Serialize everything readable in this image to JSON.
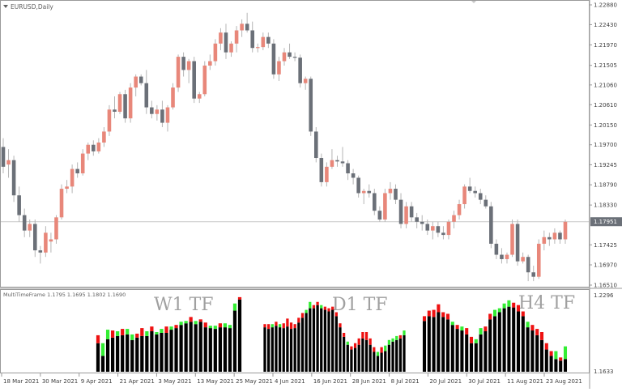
{
  "main_chart": {
    "symbol_label": "EURUSD,Daily",
    "price_ticks": [
      "1.22880",
      "1.22430",
      "1.21970",
      "1.21505",
      "1.21060",
      "1.20610",
      "1.20150",
      "1.19700",
      "1.19245",
      "1.18790",
      "1.18330",
      "1.17951",
      "1.17425",
      "1.16970",
      "1.16510"
    ],
    "current_price": "1.17951",
    "colors": {
      "bull": "#e8877a",
      "bear": "#6b7078",
      "badge": "#6b7078",
      "grid": "#c8c8c8"
    },
    "candles": [
      {
        "o": 1.1965,
        "h": 1.1985,
        "l": 1.1905,
        "c": 1.192
      },
      {
        "o": 1.1925,
        "h": 1.196,
        "l": 1.1895,
        "c": 1.1935
      },
      {
        "o": 1.1935,
        "h": 1.1945,
        "l": 1.184,
        "c": 1.1855
      },
      {
        "o": 1.1855,
        "h": 1.1875,
        "l": 1.1795,
        "c": 1.181
      },
      {
        "o": 1.181,
        "h": 1.1825,
        "l": 1.176,
        "c": 1.1775
      },
      {
        "o": 1.1775,
        "h": 1.18,
        "l": 1.176,
        "c": 1.179
      },
      {
        "o": 1.179,
        "h": 1.18,
        "l": 1.1715,
        "c": 1.173
      },
      {
        "o": 1.173,
        "h": 1.174,
        "l": 1.17,
        "c": 1.1725
      },
      {
        "o": 1.1725,
        "h": 1.1785,
        "l": 1.1715,
        "c": 1.177
      },
      {
        "o": 1.175,
        "h": 1.177,
        "l": 1.1725,
        "c": 1.1755
      },
      {
        "o": 1.1755,
        "h": 1.181,
        "l": 1.1745,
        "c": 1.1805
      },
      {
        "o": 1.1805,
        "h": 1.188,
        "l": 1.18,
        "c": 1.187
      },
      {
        "o": 1.187,
        "h": 1.189,
        "l": 1.186,
        "c": 1.1875
      },
      {
        "o": 1.1875,
        "h": 1.1925,
        "l": 1.186,
        "c": 1.1915
      },
      {
        "o": 1.1915,
        "h": 1.193,
        "l": 1.1895,
        "c": 1.1905
      },
      {
        "o": 1.1905,
        "h": 1.196,
        "l": 1.19,
        "c": 1.195
      },
      {
        "o": 1.195,
        "h": 1.1975,
        "l": 1.1935,
        "c": 1.197
      },
      {
        "o": 1.197,
        "h": 1.198,
        "l": 1.1945,
        "c": 1.1955
      },
      {
        "o": 1.1955,
        "h": 1.1985,
        "l": 1.195,
        "c": 1.1975
      },
      {
        "o": 1.1975,
        "h": 1.201,
        "l": 1.1965,
        "c": 1.2
      },
      {
        "o": 1.2,
        "h": 1.206,
        "l": 1.199,
        "c": 1.205
      },
      {
        "o": 1.205,
        "h": 1.208,
        "l": 1.203,
        "c": 1.2045
      },
      {
        "o": 1.2045,
        "h": 1.209,
        "l": 1.204,
        "c": 1.2085
      },
      {
        "o": 1.2085,
        "h": 1.2095,
        "l": 1.202,
        "c": 1.203
      },
      {
        "o": 1.203,
        "h": 1.211,
        "l": 1.202,
        "c": 1.21
      },
      {
        "o": 1.21,
        "h": 1.213,
        "l": 1.208,
        "c": 1.2125
      },
      {
        "o": 1.2125,
        "h": 1.213,
        "l": 1.2105,
        "c": 1.211
      },
      {
        "o": 1.211,
        "h": 1.214,
        "l": 1.204,
        "c": 1.2055
      },
      {
        "o": 1.2055,
        "h": 1.207,
        "l": 1.203,
        "c": 1.204
      },
      {
        "o": 1.204,
        "h": 1.206,
        "l": 1.2025,
        "c": 1.205
      },
      {
        "o": 1.205,
        "h": 1.207,
        "l": 1.201,
        "c": 1.202
      },
      {
        "o": 1.202,
        "h": 1.206,
        "l": 1.2,
        "c": 1.2055
      },
      {
        "o": 1.2055,
        "h": 1.211,
        "l": 1.205,
        "c": 1.21
      },
      {
        "o": 1.21,
        "h": 1.2175,
        "l": 1.209,
        "c": 1.217
      },
      {
        "o": 1.217,
        "h": 1.218,
        "l": 1.2125,
        "c": 1.214
      },
      {
        "o": 1.214,
        "h": 1.2165,
        "l": 1.211,
        "c": 1.216
      },
      {
        "o": 1.216,
        "h": 1.217,
        "l": 1.2065,
        "c": 1.2075
      },
      {
        "o": 1.2075,
        "h": 1.209,
        "l": 1.2065,
        "c": 1.2085
      },
      {
        "o": 1.2085,
        "h": 1.216,
        "l": 1.208,
        "c": 1.215
      },
      {
        "o": 1.215,
        "h": 1.2175,
        "l": 1.214,
        "c": 1.216
      },
      {
        "o": 1.216,
        "h": 1.221,
        "l": 1.215,
        "c": 1.22
      },
      {
        "o": 1.22,
        "h": 1.2235,
        "l": 1.2185,
        "c": 1.2225
      },
      {
        "o": 1.2225,
        "h": 1.2245,
        "l": 1.2165,
        "c": 1.218
      },
      {
        "o": 1.218,
        "h": 1.2205,
        "l": 1.217,
        "c": 1.22
      },
      {
        "o": 1.22,
        "h": 1.224,
        "l": 1.218,
        "c": 1.223
      },
      {
        "o": 1.223,
        "h": 1.2255,
        "l": 1.2215,
        "c": 1.2245
      },
      {
        "o": 1.2245,
        "h": 1.227,
        "l": 1.2225,
        "c": 1.223
      },
      {
        "o": 1.223,
        "h": 1.225,
        "l": 1.218,
        "c": 1.219
      },
      {
        "o": 1.219,
        "h": 1.22,
        "l": 1.218,
        "c": 1.2192
      },
      {
        "o": 1.2192,
        "h": 1.2225,
        "l": 1.2185,
        "c": 1.2215
      },
      {
        "o": 1.2215,
        "h": 1.2225,
        "l": 1.219,
        "c": 1.22
      },
      {
        "o": 1.22,
        "h": 1.221,
        "l": 1.212,
        "c": 1.213
      },
      {
        "o": 1.213,
        "h": 1.217,
        "l": 1.2115,
        "c": 1.216
      },
      {
        "o": 1.216,
        "h": 1.219,
        "l": 1.215,
        "c": 1.218
      },
      {
        "o": 1.218,
        "h": 1.22,
        "l": 1.2165,
        "c": 1.217
      },
      {
        "o": 1.217,
        "h": 1.218,
        "l": 1.216,
        "c": 1.2168
      },
      {
        "o": 1.2168,
        "h": 1.2175,
        "l": 1.21,
        "c": 1.211
      },
      {
        "o": 1.211,
        "h": 1.2125,
        "l": 1.2095,
        "c": 1.212
      },
      {
        "o": 1.212,
        "h": 1.2125,
        "l": 1.199,
        "c": 1.2
      },
      {
        "o": 1.2,
        "h": 1.201,
        "l": 1.193,
        "c": 1.194
      },
      {
        "o": 1.194,
        "h": 1.195,
        "l": 1.1875,
        "c": 1.1885
      },
      {
        "o": 1.1885,
        "h": 1.193,
        "l": 1.1875,
        "c": 1.192
      },
      {
        "o": 1.192,
        "h": 1.196,
        "l": 1.1915,
        "c": 1.1935
      },
      {
        "o": 1.1935,
        "h": 1.1945,
        "l": 1.192,
        "c": 1.1932
      },
      {
        "o": 1.1932,
        "h": 1.1965,
        "l": 1.192,
        "c": 1.1928
      },
      {
        "o": 1.1928,
        "h": 1.1935,
        "l": 1.189,
        "c": 1.1905
      },
      {
        "o": 1.1905,
        "h": 1.1915,
        "l": 1.188,
        "c": 1.1895
      },
      {
        "o": 1.1895,
        "h": 1.19,
        "l": 1.185,
        "c": 1.186
      },
      {
        "o": 1.186,
        "h": 1.187,
        "l": 1.1835,
        "c": 1.1865
      },
      {
        "o": 1.1865,
        "h": 1.188,
        "l": 1.185,
        "c": 1.186
      },
      {
        "o": 1.186,
        "h": 1.187,
        "l": 1.181,
        "c": 1.182
      },
      {
        "o": 1.182,
        "h": 1.183,
        "l": 1.1795,
        "c": 1.18
      },
      {
        "o": 1.18,
        "h": 1.187,
        "l": 1.1795,
        "c": 1.186
      },
      {
        "o": 1.186,
        "h": 1.1885,
        "l": 1.1845,
        "c": 1.187
      },
      {
        "o": 1.187,
        "h": 1.188,
        "l": 1.1835,
        "c": 1.1845
      },
      {
        "o": 1.1845,
        "h": 1.186,
        "l": 1.178,
        "c": 1.179
      },
      {
        "o": 1.179,
        "h": 1.184,
        "l": 1.178,
        "c": 1.183
      },
      {
        "o": 1.183,
        "h": 1.184,
        "l": 1.1795,
        "c": 1.1805
      },
      {
        "o": 1.1805,
        "h": 1.1815,
        "l": 1.178,
        "c": 1.1795
      },
      {
        "o": 1.1795,
        "h": 1.181,
        "l": 1.1775,
        "c": 1.179
      },
      {
        "o": 1.179,
        "h": 1.18,
        "l": 1.1765,
        "c": 1.1775
      },
      {
        "o": 1.1775,
        "h": 1.1795,
        "l": 1.1755,
        "c": 1.1785
      },
      {
        "o": 1.1785,
        "h": 1.1795,
        "l": 1.176,
        "c": 1.177
      },
      {
        "o": 1.177,
        "h": 1.1785,
        "l": 1.1755,
        "c": 1.1765
      },
      {
        "o": 1.1765,
        "h": 1.18,
        "l": 1.1755,
        "c": 1.1795
      },
      {
        "o": 1.1795,
        "h": 1.182,
        "l": 1.178,
        "c": 1.181
      },
      {
        "o": 1.181,
        "h": 1.1845,
        "l": 1.18,
        "c": 1.1835
      },
      {
        "o": 1.1835,
        "h": 1.188,
        "l": 1.1825,
        "c": 1.1875
      },
      {
        "o": 1.1875,
        "h": 1.1895,
        "l": 1.186,
        "c": 1.1865
      },
      {
        "o": 1.1865,
        "h": 1.1875,
        "l": 1.185,
        "c": 1.186
      },
      {
        "o": 1.186,
        "h": 1.187,
        "l": 1.1835,
        "c": 1.1845
      },
      {
        "o": 1.1845,
        "h": 1.1855,
        "l": 1.1825,
        "c": 1.183
      },
      {
        "o": 1.183,
        "h": 1.184,
        "l": 1.1735,
        "c": 1.1745
      },
      {
        "o": 1.1745,
        "h": 1.1755,
        "l": 1.171,
        "c": 1.172
      },
      {
        "o": 1.172,
        "h": 1.1735,
        "l": 1.17,
        "c": 1.171
      },
      {
        "o": 1.171,
        "h": 1.1725,
        "l": 1.17,
        "c": 1.172
      },
      {
        "o": 1.172,
        "h": 1.18,
        "l": 1.1715,
        "c": 1.179
      },
      {
        "o": 1.179,
        "h": 1.18,
        "l": 1.1695,
        "c": 1.1705
      },
      {
        "o": 1.1705,
        "h": 1.1725,
        "l": 1.17,
        "c": 1.1715
      },
      {
        "o": 1.1715,
        "h": 1.172,
        "l": 1.166,
        "c": 1.168
      },
      {
        "o": 1.168,
        "h": 1.1695,
        "l": 1.166,
        "c": 1.167
      },
      {
        "o": 1.167,
        "h": 1.1755,
        "l": 1.1665,
        "c": 1.1745
      },
      {
        "o": 1.1745,
        "h": 1.1775,
        "l": 1.173,
        "c": 1.176
      },
      {
        "o": 1.176,
        "h": 1.177,
        "l": 1.174,
        "c": 1.1755
      },
      {
        "o": 1.1755,
        "h": 1.178,
        "l": 1.1745,
        "c": 1.177
      },
      {
        "o": 1.177,
        "h": 1.1775,
        "l": 1.1745,
        "c": 1.1755
      },
      {
        "o": 1.1755,
        "h": 1.18,
        "l": 1.1745,
        "c": 1.1795
      }
    ]
  },
  "indicator": {
    "header": "MultiTimeFrame 1.1795 1.1695 1.1802 1.1690",
    "scale_top": "1.2296",
    "scale_bottom": "1.1633",
    "w1_label": "W1 TF",
    "d1_label": "D1 TF",
    "h4_label": "H4 TF",
    "colors": {
      "bar": "#000000",
      "green": "#33ee33",
      "red": "#ee1111"
    },
    "w1_bars": [
      [
        0.36,
        0.0,
        0.1
      ],
      [
        0.2,
        0.16,
        0.0
      ],
      [
        0.41,
        0.12,
        0.0
      ],
      [
        0.43,
        0.0,
        0.09
      ],
      [
        0.45,
        0.06,
        0.0
      ],
      [
        0.46,
        0.0,
        0.08
      ],
      [
        0.47,
        0.07,
        0.0
      ],
      [
        0.4,
        0.07,
        0.0
      ],
      [
        0.43,
        0.0,
        0.05
      ],
      [
        0.45,
        0.0,
        0.1
      ],
      [
        0.45,
        0.06,
        0.0
      ],
      [
        0.51,
        0.0,
        0.06
      ],
      [
        0.47,
        0.03,
        0.0
      ],
      [
        0.49,
        0.05,
        0.0
      ],
      [
        0.49,
        0.0,
        0.08
      ],
      [
        0.53,
        0.04,
        0.0
      ],
      [
        0.55,
        0.0,
        0.04
      ],
      [
        0.59,
        0.04,
        0.0
      ],
      [
        0.61,
        0.03,
        0.0
      ],
      [
        0.63,
        0.0,
        0.06
      ],
      [
        0.6,
        0.04,
        0.0
      ],
      [
        0.63,
        0.0,
        0.03
      ],
      [
        0.56,
        0.0,
        0.06
      ],
      [
        0.55,
        0.03,
        0.0
      ],
      [
        0.54,
        0.04,
        0.0
      ],
      [
        0.56,
        0.0,
        0.05
      ],
      [
        0.56,
        0.05,
        0.0
      ],
      [
        0.55,
        0.04,
        0.0
      ],
      [
        0.77,
        0.09,
        0.0
      ],
      [
        0.91,
        0.0,
        0.03
      ]
    ],
    "d1_bars": [
      [
        0.56,
        0.0,
        0.04
      ],
      [
        0.54,
        0.0,
        0.06
      ],
      [
        0.56,
        0.04,
        0.0
      ],
      [
        0.58,
        0.0,
        0.05
      ],
      [
        0.56,
        0.04,
        0.0
      ],
      [
        0.55,
        0.0,
        0.06
      ],
      [
        0.57,
        0.0,
        0.1
      ],
      [
        0.54,
        0.0,
        0.08
      ],
      [
        0.55,
        0.0,
        0.05
      ],
      [
        0.62,
        0.0,
        0.06
      ],
      [
        0.68,
        0.0,
        0.06
      ],
      [
        0.74,
        0.04,
        0.0
      ],
      [
        0.8,
        0.08,
        0.0
      ],
      [
        0.8,
        0.0,
        0.04
      ],
      [
        0.84,
        0.0,
        0.04
      ],
      [
        0.8,
        0.04,
        0.0
      ],
      [
        0.78,
        0.0,
        0.04
      ],
      [
        0.76,
        0.0,
        0.04
      ],
      [
        0.78,
        0.0,
        0.04
      ],
      [
        0.7,
        0.0,
        0.05
      ],
      [
        0.56,
        0.0,
        0.05
      ],
      [
        0.44,
        0.0,
        0.05
      ],
      [
        0.34,
        0.04,
        0.0
      ],
      [
        0.28,
        0.0,
        0.04
      ],
      [
        0.3,
        0.0,
        0.06
      ],
      [
        0.34,
        0.0,
        0.08
      ],
      [
        0.42,
        0.0,
        0.08
      ],
      [
        0.4,
        0.0,
        0.1
      ],
      [
        0.34,
        0.0,
        0.08
      ],
      [
        0.25,
        0.0,
        0.06
      ],
      [
        0.2,
        0.05,
        0.0
      ],
      [
        0.24,
        0.0,
        0.07
      ],
      [
        0.26,
        0.07,
        0.0
      ],
      [
        0.34,
        0.06,
        0.0
      ],
      [
        0.38,
        0.04,
        0.0
      ],
      [
        0.4,
        0.05,
        0.0
      ],
      [
        0.42,
        0.0,
        0.04
      ],
      [
        0.46,
        0.06,
        0.0
      ]
    ],
    "h4_bars": [
      [
        0.64,
        0.0,
        0.06
      ],
      [
        0.7,
        0.0,
        0.07
      ],
      [
        0.69,
        0.0,
        0.09
      ],
      [
        0.75,
        0.0,
        0.1
      ],
      [
        0.69,
        0.0,
        0.06
      ],
      [
        0.66,
        0.0,
        0.07
      ],
      [
        0.59,
        0.04,
        0.0
      ],
      [
        0.54,
        0.0,
        0.05
      ],
      [
        0.52,
        0.05,
        0.0
      ],
      [
        0.47,
        0.0,
        0.08
      ],
      [
        0.36,
        0.0,
        0.08
      ],
      [
        0.36,
        0.05,
        0.0
      ],
      [
        0.47,
        0.08,
        0.0
      ],
      [
        0.51,
        0.0,
        0.06
      ],
      [
        0.66,
        0.0,
        0.07
      ],
      [
        0.7,
        0.08,
        0.0
      ],
      [
        0.75,
        0.05,
        0.0
      ],
      [
        0.8,
        0.06,
        0.0
      ],
      [
        0.82,
        0.08,
        0.0
      ],
      [
        0.81,
        0.0,
        0.06
      ],
      [
        0.76,
        0.0,
        0.08
      ],
      [
        0.7,
        0.0,
        0.06
      ],
      [
        0.56,
        0.07,
        0.0
      ],
      [
        0.52,
        0.0,
        0.07
      ],
      [
        0.46,
        0.0,
        0.08
      ],
      [
        0.4,
        0.0,
        0.1
      ],
      [
        0.28,
        0.0,
        0.08
      ],
      [
        0.2,
        0.0,
        0.06
      ],
      [
        0.16,
        0.1,
        0.0
      ],
      [
        0.14,
        0.0,
        0.04
      ],
      [
        0.16,
        0.16,
        0.0
      ]
    ]
  },
  "time_axis": [
    "18 Mar 2021",
    "30 Mar 2021",
    "9 Apr 2021",
    "21 Apr 2021",
    "3 May 2021",
    "13 May 2021",
    "25 May 2021",
    "4 Jun 2021",
    "16 Jun 2021",
    "28 Jun 2021",
    "8 Jul 2021",
    "20 Jul 2021",
    "30 Jul 2021",
    "11 Aug 2021",
    "23 Aug 2021"
  ]
}
